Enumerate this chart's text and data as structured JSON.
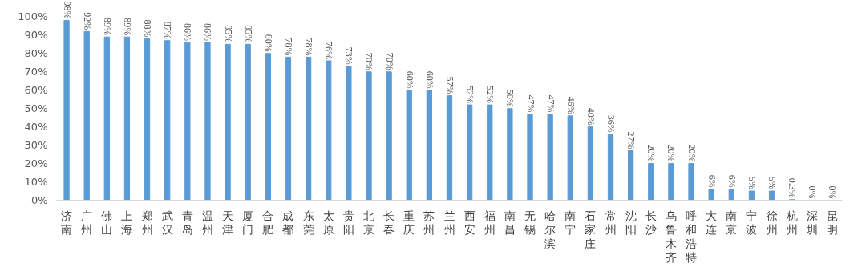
{
  "chart_data": {
    "type": "bar",
    "categories": [
      "济南",
      "广州",
      "佛山",
      "上海",
      "郑州",
      "武汉",
      "青岛",
      "温州",
      "天津",
      "厦门",
      "合肥",
      "成都",
      "东莞",
      "太原",
      "贵阳",
      "北京",
      "长春",
      "重庆",
      "苏州",
      "兰州",
      "西安",
      "福州",
      "南昌",
      "无锡",
      "哈尔滨",
      "南宁",
      "石家庄",
      "常州",
      "沈阳",
      "长沙",
      "乌鲁木齐",
      "呼和浩特",
      "大连",
      "南京",
      "宁波",
      "徐州",
      "杭州",
      "深圳",
      "昆明"
    ],
    "values": [
      98,
      92,
      89,
      89,
      88,
      87,
      86,
      86,
      85,
      85,
      80,
      78,
      78,
      76,
      73,
      70,
      70,
      60,
      60,
      57,
      52,
      52,
      50,
      47,
      47,
      46,
      40,
      36,
      27,
      20,
      20,
      20,
      6,
      6,
      5,
      5,
      0.3,
      0,
      0
    ],
    "value_labels": [
      "98%",
      "92%",
      "89%",
      "89%",
      "88%",
      "87%",
      "86%",
      "86%",
      "85%",
      "85%",
      "80%",
      "78%",
      "78%",
      "76%",
      "73%",
      "70%",
      "70%",
      "60%",
      "60%",
      "57%",
      "52%",
      "52%",
      "50%",
      "47%",
      "47%",
      "46%",
      "40%",
      "36%",
      "27%",
      "20%",
      "20%",
      "20%",
      "6%",
      "6%",
      "5%",
      "5%",
      "0.3%",
      "0%",
      "0%"
    ],
    "color": "#5b9bd5",
    "ylim": [
      0,
      100
    ],
    "yticks": [
      {
        "value": 0,
        "label": "0%"
      },
      {
        "value": 10,
        "label": "10%"
      },
      {
        "value": 20,
        "label": "20%"
      },
      {
        "value": 30,
        "label": "30%"
      },
      {
        "value": 40,
        "label": "40%"
      },
      {
        "value": 50,
        "label": "50%"
      },
      {
        "value": 60,
        "label": "60%"
      },
      {
        "value": 70,
        "label": "70%"
      },
      {
        "value": 80,
        "label": "80%"
      },
      {
        "value": 90,
        "label": "90%"
      },
      {
        "value": 100,
        "label": "100%"
      }
    ],
    "grid": false
  }
}
